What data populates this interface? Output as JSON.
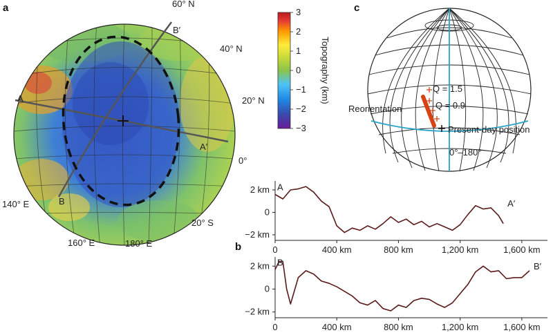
{
  "panel_a": {
    "letter": "a",
    "lat_labels": [
      "60° N",
      "40° N",
      "20° N",
      "0°",
      "20° S"
    ],
    "lon_labels": [
      "140° E",
      "160° E",
      "180° E"
    ],
    "profile_labels": [
      "A",
      "A′",
      "B",
      "B′"
    ],
    "colorbar": {
      "title": "Topography (km)",
      "ticks": [
        "3",
        "2",
        "1",
        "0",
        "−1",
        "−2",
        "−3"
      ],
      "colors": [
        "#6a1b9a",
        "#3949ab",
        "#1e88e5",
        "#4fc3f7",
        "#8bc34a",
        "#cddc39",
        "#ffeb3b",
        "#ff9800",
        "#e53935",
        "#b71c1c"
      ]
    }
  },
  "panel_b": {
    "letter": "b"
  },
  "panel_c": {
    "letter": "c",
    "reorientation_label": "Reorientation",
    "q_labels": [
      "Q = 1.5",
      "Q = 0.9"
    ],
    "present_label": "Present-day position",
    "meridian_label": "0°–180°",
    "colors": {
      "reorientation": "#d84315",
      "meridian": "#29a3c7",
      "q_label": "#e8552a"
    }
  },
  "chart_data": [
    {
      "type": "line",
      "title": "",
      "xlabel": "",
      "ylabel": "",
      "xlim": [
        0,
        1600
      ],
      "ylim": [
        -2.5,
        2.8
      ],
      "x_ticks": [
        "0",
        "400 km",
        "800 km",
        "1,200 km",
        "1,600 km"
      ],
      "y_ticks": [
        "2 km",
        "0",
        "−2 km"
      ],
      "series_labels": {
        "start": "A",
        "end": "A′"
      },
      "color": "#5a1a1a",
      "x": [
        0,
        50,
        100,
        150,
        200,
        250,
        300,
        350,
        400,
        450,
        500,
        550,
        600,
        650,
        700,
        750,
        800,
        850,
        900,
        950,
        1000,
        1050,
        1100,
        1150,
        1200,
        1250,
        1300,
        1350,
        1400,
        1450,
        1480
      ],
      "y": [
        1.6,
        1.2,
        2.0,
        2.1,
        2.3,
        1.8,
        1.0,
        0.5,
        -1.2,
        -1.8,
        -1.4,
        -1.6,
        -1.2,
        -1.5,
        -1.0,
        -0.4,
        -0.9,
        -0.6,
        -1.1,
        -0.8,
        -1.3,
        -1.0,
        -1.3,
        -1.6,
        -1.1,
        -0.2,
        0.6,
        0.3,
        0.4,
        -0.3,
        -1.0
      ]
    },
    {
      "type": "line",
      "title": "",
      "xlabel": "",
      "ylabel": "",
      "xlim": [
        0,
        1700
      ],
      "ylim": [
        -2.5,
        2.8
      ],
      "x_ticks": [
        "0",
        "400 km",
        "800 km",
        "1,200 km",
        "1,600 km"
      ],
      "y_ticks": [
        "2 km",
        "0",
        "−2 km"
      ],
      "series_labels": {
        "start": "B",
        "end": "B′"
      },
      "color": "#5a1a1a",
      "x": [
        0,
        25,
        50,
        75,
        100,
        150,
        200,
        250,
        300,
        350,
        400,
        450,
        500,
        550,
        600,
        650,
        700,
        750,
        800,
        850,
        900,
        950,
        1000,
        1050,
        1100,
        1150,
        1200,
        1250,
        1300,
        1350,
        1400,
        1450,
        1500,
        1550,
        1600,
        1650
      ],
      "y": [
        1.7,
        2.4,
        2.4,
        0.0,
        -1.3,
        1.0,
        1.6,
        1.3,
        0.7,
        0.5,
        0.2,
        -0.2,
        -0.6,
        -1.2,
        -1.4,
        -1.0,
        -1.7,
        -1.9,
        -1.4,
        -1.6,
        -1.0,
        -0.8,
        -0.9,
        -1.3,
        -1.6,
        -1.2,
        -0.4,
        0.4,
        1.5,
        2.0,
        1.5,
        1.6,
        0.9,
        1.0,
        1.0,
        1.6
      ]
    }
  ]
}
